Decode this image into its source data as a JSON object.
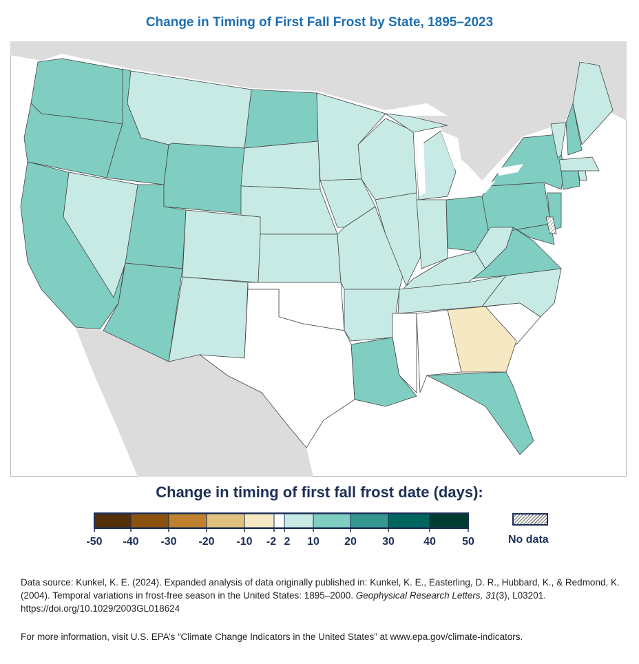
{
  "title": "Change in Timing of First Fall Frost by State, 1895–2023",
  "legend": {
    "title": "Change in timing of first fall frost date (days):",
    "ticks": [
      "-50",
      "-40",
      "-30",
      "-20",
      "-10",
      "-2",
      "2",
      "10",
      "20",
      "30",
      "40",
      "50"
    ],
    "bin_colors": [
      "#54300a",
      "#8b510f",
      "#bf812d",
      "#dfc27d",
      "#f6e8c3",
      "#ffffff",
      "#c7eae5",
      "#80cdc1",
      "#35978f",
      "#01665e",
      "#003c30"
    ],
    "no_data_label": "No data"
  },
  "state_bins": {
    "WA": 7,
    "OR": 7,
    "CA": 7,
    "ID": 7,
    "UT": 7,
    "AZ": 7,
    "WY": 7,
    "ND": 7,
    "OH": 7,
    "PA": 7,
    "NY": 7,
    "NH": 7,
    "VA": 7,
    "LA": 7,
    "FL": 7,
    "NJ": 7,
    "CT": 7,
    "MD": 7,
    "MT": 6,
    "NV": 6,
    "CO": 6,
    "NM": 6,
    "SD": 6,
    "NE": 6,
    "KS": 6,
    "MN": 6,
    "IA": 6,
    "MO": 6,
    "AR": 6,
    "WI": 6,
    "IL": 6,
    "MI": 6,
    "MIU": 6,
    "IN": 6,
    "KY": 6,
    "TN": 6,
    "WV": 6,
    "NC": 6,
    "ME": 6,
    "VT": 6,
    "MA": 6,
    "RI": 6,
    "OK": 5,
    "TX": 5,
    "MS": 5,
    "AL": 5,
    "SC": 5,
    "GA": 4,
    "DE": null
  },
  "source": {
    "text_a": "Data source: Kunkel, K. E. (2024). Expanded analysis of data originally published in: Kunkel, K. E., Easterling, D. R., Hubbard, K., & Redmond, K. (2004). Temporal variations in frost-free season in the United States: 1895–2000. ",
    "journal": "Geophysical Research Letters, 31",
    "text_b": "(3), L03201. https://doi.org/10.1029/2003GL018624"
  },
  "more_info": "For more information, visit U.S. EPA’s “Climate Change Indicators in the United States” at www.epa.gov/climate-indicators."
}
